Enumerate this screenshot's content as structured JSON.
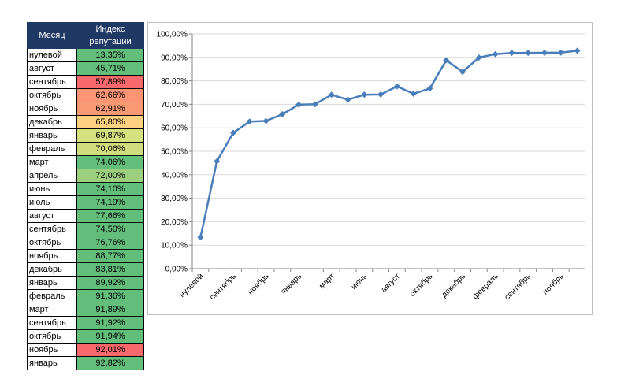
{
  "table": {
    "headers": {
      "month": "Месяц",
      "index_line1": "Индекс",
      "index_line2": "репутации"
    },
    "rows": [
      {
        "month": "нулевой",
        "value": "13,35%",
        "color": "#63be7b"
      },
      {
        "month": "август",
        "value": "45,71%",
        "color": "#63be7b"
      },
      {
        "month": "сентябрь",
        "value": "57,89%",
        "color": "#f8696b"
      },
      {
        "month": "октябрь",
        "value": "62,66%",
        "color": "#fa9473"
      },
      {
        "month": "ноябрь",
        "value": "62,91%",
        "color": "#fa9a74"
      },
      {
        "month": "декабрь",
        "value": "65,80%",
        "color": "#fdd17f"
      },
      {
        "month": "январь",
        "value": "69,87%",
        "color": "#d5e07f"
      },
      {
        "month": "февраль",
        "value": "70,06%",
        "color": "#cfdd7e"
      },
      {
        "month": "март",
        "value": "74,06%",
        "color": "#63be7b"
      },
      {
        "month": "апрель",
        "value": "72,00%",
        "color": "#9ccf7e"
      },
      {
        "month": "июнь",
        "value": "74,10%",
        "color": "#63be7b"
      },
      {
        "month": "июль",
        "value": "74,19%",
        "color": "#63be7b"
      },
      {
        "month": "август",
        "value": "77,66%",
        "color": "#63be7b"
      },
      {
        "month": "сентябрь",
        "value": "74,50%",
        "color": "#63be7b"
      },
      {
        "month": "октябрь",
        "value": "76,76%",
        "color": "#63be7b"
      },
      {
        "month": "ноябрь",
        "value": "88,77%",
        "color": "#63be7b"
      },
      {
        "month": "декабрь",
        "value": "83,81%",
        "color": "#63be7b"
      },
      {
        "month": "январь",
        "value": "89,92%",
        "color": "#63be7b"
      },
      {
        "month": "февраль",
        "value": "91,36%",
        "color": "#63be7b"
      },
      {
        "month": "март",
        "value": "91,89%",
        "color": "#63be7b"
      },
      {
        "month": "сентябрь",
        "value": "91,92%",
        "color": "#63be7b"
      },
      {
        "month": "октябрь",
        "value": "91,94%",
        "color": "#63be7b"
      },
      {
        "month": "ноябрь",
        "value": "92,01%",
        "color": "#f8696b"
      },
      {
        "month": "январь",
        "value": "92,82%",
        "color": "#63be7b"
      }
    ]
  },
  "chart_data": {
    "type": "line",
    "title": "",
    "xlabel": "",
    "ylabel": "",
    "ylim": [
      0,
      100
    ],
    "grid": true,
    "line_color": "#4a7ebb",
    "y_ticks": [
      "0,00%",
      "10,00%",
      "20,00%",
      "30,00%",
      "40,00%",
      "50,00%",
      "60,00%",
      "70,00%",
      "80,00%",
      "90,00%",
      "100,00%"
    ],
    "categories": [
      "нулевой",
      "август",
      "сентябрь",
      "октябрь",
      "ноябрь",
      "декабрь",
      "январь",
      "февраль",
      "март",
      "апрель",
      "июнь",
      "июль",
      "август",
      "сентябрь",
      "октябрь",
      "ноябрь",
      "декабрь",
      "январь",
      "февраль",
      "март",
      "сентябрь",
      "октябрь",
      "ноябрь",
      "январь"
    ],
    "x_tick_labels_shown": [
      "нулевой",
      "сентябрь",
      "ноябрь",
      "январь",
      "март",
      "июнь",
      "август",
      "октябрь",
      "декабрь",
      "февраль",
      "сентябрь",
      "ноябрь"
    ],
    "series": [
      {
        "values": [
          13.35,
          45.71,
          57.89,
          62.66,
          62.91,
          65.8,
          69.87,
          70.06,
          74.06,
          72.0,
          74.1,
          74.19,
          77.66,
          74.5,
          76.76,
          88.77,
          83.81,
          89.92,
          91.36,
          91.89,
          91.92,
          91.94,
          92.01,
          92.82
        ]
      }
    ]
  }
}
